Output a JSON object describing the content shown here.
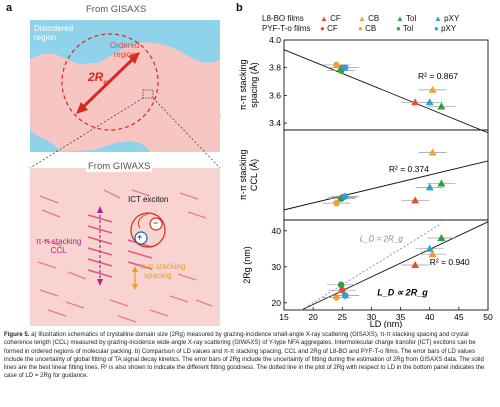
{
  "panel_a": {
    "letter": "a",
    "top_title": "From GISAXS",
    "disordered_label_1": "Disordered",
    "disordered_label_2": "region",
    "ordered_label_1": "Ordered",
    "ordered_label_2": "region",
    "rg_label": "2R",
    "rg_sub": "g",
    "bottom_title": "From GIWAXS",
    "ict_label": "ICT exciton",
    "ccl_label_1": "π-π stacking",
    "ccl_label_2": "CCL",
    "spacing_label_1": "π-π stacking",
    "spacing_label_2": "spacing",
    "plus": "+",
    "minus": "−"
  },
  "panel_b": {
    "letter": "b",
    "legend": {
      "row1_label": "L8-BO films",
      "row2_label": "PYF-T-o films",
      "entries": [
        "CF",
        "CB",
        "Tol",
        "pXY"
      ],
      "colors": {
        "CF": "#e8502e",
        "CB": "#f0a030",
        "Tol": "#2e9e3e",
        "pXY": "#2f9fdc"
      }
    }
  },
  "chart_data": [
    {
      "type": "scatter",
      "panel": "top",
      "ylabel": "π-π stacking spacing (Å)",
      "ylim": [
        3.35,
        4.0
      ],
      "yticks": [
        "3.4",
        "3.6",
        "3.8",
        "4.0"
      ],
      "xlim": [
        15,
        50
      ],
      "r2": "R² = 0.867",
      "series": [
        {
          "name": "L8-BO CF",
          "shape": "triangle",
          "color": "#e8502e",
          "x": 37.5,
          "y": 3.55
        },
        {
          "name": "L8-BO CB",
          "shape": "triangle",
          "color": "#f0a030",
          "x": 40.5,
          "y": 3.64
        },
        {
          "name": "L8-BO Tol",
          "shape": "triangle",
          "color": "#2e9e3e",
          "x": 42.0,
          "y": 3.52
        },
        {
          "name": "L8-BO pXY",
          "shape": "triangle",
          "color": "#2f9fdc",
          "x": 40.0,
          "y": 3.55
        },
        {
          "name": "PYF-T-o CF",
          "shape": "circle",
          "color": "#e8502e",
          "x": 25.0,
          "y": 3.8
        },
        {
          "name": "PYF-T-o CB",
          "shape": "circle",
          "color": "#f0a030",
          "x": 24.0,
          "y": 3.82
        },
        {
          "name": "PYF-T-o Tol",
          "shape": "circle",
          "color": "#2e9e3e",
          "x": 24.8,
          "y": 3.78
        },
        {
          "name": "PYF-T-o pXY",
          "shape": "circle",
          "color": "#2f9fdc",
          "x": 25.5,
          "y": 3.8
        }
      ]
    },
    {
      "type": "scatter",
      "panel": "middle",
      "ylabel": "π-π stacking CCL (Å)",
      "r2": "R² = 0.374",
      "series": [
        {
          "name": "L8-BO CF",
          "shape": "triangle",
          "color": "#e8502e",
          "x": 37.5,
          "y": 13.5
        },
        {
          "name": "L8-BO CB",
          "shape": "triangle",
          "color": "#f0a030",
          "x": 40.5,
          "y": 22.0
        },
        {
          "name": "L8-BO Tol",
          "shape": "triangle",
          "color": "#2e9e3e",
          "x": 42.0,
          "y": 16.5
        },
        {
          "name": "L8-BO pXY",
          "shape": "triangle",
          "color": "#2f9fdc",
          "x": 40.0,
          "y": 15.8
        },
        {
          "name": "PYF-T-o CF",
          "shape": "circle",
          "color": "#e8502e",
          "x": 25.0,
          "y": 14.0
        },
        {
          "name": "PYF-T-o CB",
          "shape": "circle",
          "color": "#f0a030",
          "x": 24.0,
          "y": 13.0
        },
        {
          "name": "PYF-T-o Tol",
          "shape": "circle",
          "color": "#2e9e3e",
          "x": 24.8,
          "y": 13.8
        },
        {
          "name": "PYF-T-o pXY",
          "shape": "circle",
          "color": "#2f9fdc",
          "x": 25.5,
          "y": 14.2
        }
      ]
    },
    {
      "type": "scatter",
      "panel": "bottom",
      "ylabel": "2R_g (nm)",
      "ylim": [
        18,
        43
      ],
      "yticks": [
        "20",
        "30",
        "40"
      ],
      "xlim": [
        15,
        50
      ],
      "xticks": [
        "15",
        "20",
        "25",
        "30",
        "35",
        "40",
        "45",
        "50"
      ],
      "xlabel": "L_D (nm)",
      "r2": "R² = 0.940",
      "annotation_dotted": "L_D = 2R_g",
      "annotation_fit": "L_D ∝ 2R_g",
      "series": [
        {
          "name": "L8-BO CF",
          "shape": "triangle",
          "color": "#e8502e",
          "x": 37.5,
          "y": 30.5
        },
        {
          "name": "L8-BO CB",
          "shape": "triangle",
          "color": "#f0a030",
          "x": 40.5,
          "y": 33.5
        },
        {
          "name": "L8-BO Tol",
          "shape": "triangle",
          "color": "#2e9e3e",
          "x": 42.0,
          "y": 38.0
        },
        {
          "name": "L8-BO pXY",
          "shape": "triangle",
          "color": "#2f9fdc",
          "x": 40.0,
          "y": 35.0
        },
        {
          "name": "PYF-T-o CF",
          "shape": "circle",
          "color": "#e8502e",
          "x": 25.0,
          "y": 23.5
        },
        {
          "name": "PYF-T-o CB",
          "shape": "circle",
          "color": "#f0a030",
          "x": 24.0,
          "y": 21.5
        },
        {
          "name": "PYF-T-o Tol",
          "shape": "circle",
          "color": "#2e9e3e",
          "x": 24.8,
          "y": 25.0
        },
        {
          "name": "PYF-T-o pXY",
          "shape": "circle",
          "color": "#2f9fdc",
          "x": 25.5,
          "y": 22.0
        }
      ]
    }
  ],
  "caption": {
    "figure_label": "Figure 5.",
    "text": " a) Illustration schematics of crystalline domain size (2Rg) measured by grazing-incidence small-angle X-ray scattering (GISAXS), π-π stacking spacing and crystal coherence length (CCL) measured by grazing-incidence wide-angle X-ray scattering (GIWAXS) of Y-type NFA aggregates. Intermolecular charge transfer (ICT) excitons can be formed in ordered regions of molecular packing. b) Comparison of LD values and π-π stacking spacing, CCL and 2Rg of L8-BO and PYF-T-o films. The error bars of LD values include the uncertainty of global fitting of TA signal decay kinetics. The error bars of 2Rg include the uncertainty of fitting during the estimation of 2Rg from GISAXS data. The solid lines are the best linear fitting lines. R² is also shown to indicate the different fitting goodness. The dotted line in the plot of 2Rg with respect to LD in the bottom panel indicates the case of LD = 2Rg for guidance."
  }
}
